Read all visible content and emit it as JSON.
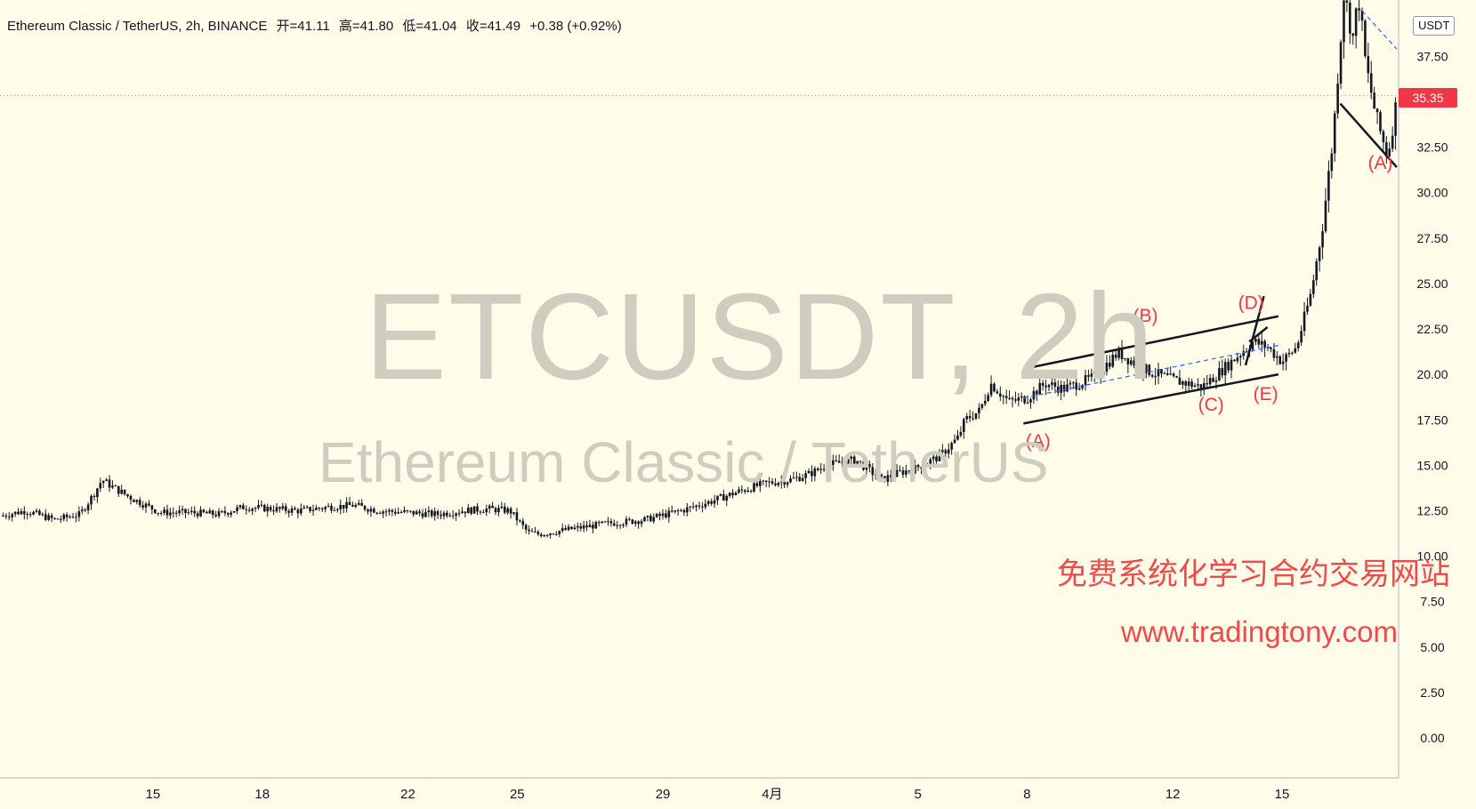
{
  "header": {
    "symbol": "Ethereum Classic / TetherUS, 2h, BINANCE",
    "open": "开=41.11",
    "high": "高=41.80",
    "low": "低=41.04",
    "close": "收=41.49",
    "change": "+0.38 (+0.92%)"
  },
  "watermark": {
    "symbol": "ETCUSDT, 2h",
    "name": "Ethereum Classic / TetherUS"
  },
  "promo": {
    "line1": "免费系统化学习合约交易网站",
    "line2": "www.tradingtony.com"
  },
  "price_scale": {
    "unit": "USDT",
    "last_price": "35.35",
    "last_price_value": 35.35
  },
  "colors": {
    "background": "#fffde9",
    "candle": "#131722",
    "wave_label": "#f23645",
    "midline": "#2962ff",
    "last_price": "#f23645"
  },
  "chart_data": {
    "type": "line",
    "title": "",
    "xlabel": "",
    "ylabel": "",
    "x_ticks": [
      {
        "label": "15",
        "day": 15
      },
      {
        "label": "18",
        "day": 18
      },
      {
        "label": "22",
        "day": 22
      },
      {
        "label": "25",
        "day": 25
      },
      {
        "label": "29",
        "day": 29
      },
      {
        "label": "4月",
        "day": 32
      },
      {
        "label": "5",
        "day": 36
      },
      {
        "label": "8",
        "day": 39
      },
      {
        "label": "12",
        "day": 43
      },
      {
        "label": "15",
        "day": 46
      }
    ],
    "y_ticks": [
      "0.00",
      "2.50",
      "5.00",
      "7.50",
      "10.00",
      "12.50",
      "15.00",
      "17.50",
      "20.00",
      "22.50",
      "25.00",
      "27.50",
      "30.00",
      "32.50",
      "37.50"
    ],
    "y_tick_values": [
      0,
      2.5,
      5,
      7.5,
      10,
      12.5,
      15,
      17.5,
      20,
      22.5,
      25,
      27.5,
      30,
      32.5,
      37.5
    ],
    "ylim": [
      -2.2,
      40.6
    ],
    "xlim": [
      10.8,
      49.2
    ],
    "grid": false,
    "series": [
      {
        "x": [
          10.8,
          11.5,
          12.3,
          13.0,
          13.4,
          13.6,
          13.9,
          14.4,
          15.2,
          16.0,
          16.8,
          17.5,
          18.3,
          19.0,
          19.8,
          20.5,
          21.2,
          22.0,
          22.8,
          23.5,
          24.2,
          24.8,
          25.3,
          25.6,
          26.5,
          27.5,
          28.5,
          29.5,
          30.3,
          31.0,
          31.8,
          32.5,
          33.0,
          33.5,
          34.3,
          35.0,
          35.5,
          35.9,
          36.6,
          37.1,
          37.3,
          37.7,
          38.0,
          38.5,
          39.0,
          39.5,
          40.0,
          40.8,
          41.5,
          42.3,
          43.0,
          43.8,
          44.5,
          45.2,
          45.6,
          46.0,
          46.4,
          46.8,
          47.1,
          47.4,
          47.7,
          47.95,
          48.1,
          48.3,
          48.6,
          48.9,
          49.1,
          49.2
        ],
        "y": [
          12.2,
          12.5,
          12.0,
          12.3,
          13.5,
          14.2,
          13.8,
          13.2,
          12.4,
          12.4,
          12.3,
          12.7,
          12.6,
          12.5,
          12.7,
          12.8,
          12.5,
          12.4,
          12.3,
          12.5,
          12.6,
          12.5,
          11.3,
          11.2,
          11.5,
          11.8,
          12.0,
          12.5,
          13.0,
          13.5,
          14.0,
          14.2,
          14.5,
          15.0,
          15.3,
          14.2,
          14.6,
          14.8,
          15.5,
          16.5,
          17.5,
          18.0,
          19.5,
          18.5,
          18.7,
          19.5,
          19.2,
          19.8,
          21.2,
          20.2,
          19.7,
          19.3,
          20.5,
          21.8,
          21.5,
          20.7,
          21.5,
          24.5,
          28.0,
          33.0,
          41.0,
          38.5,
          40.8,
          37.0,
          34.0,
          32.0,
          34.5,
          35.4
        ]
      }
    ],
    "channel": {
      "upper": [
        [
          38.9,
          20.3
        ],
        [
          45.9,
          23.2
        ]
      ],
      "lower": [
        [
          38.9,
          17.3
        ],
        [
          45.9,
          20.0
        ]
      ],
      "midline": [
        [
          38.9,
          18.7
        ],
        [
          45.9,
          21.6
        ]
      ]
    },
    "terminal_wedge": [
      [
        [
          45.0,
          20.5
        ],
        [
          45.5,
          24.3
        ]
      ],
      [
        [
          45.1,
          21.8
        ],
        [
          45.6,
          22.6
        ]
      ]
    ],
    "descending_line": [
      [
        47.6,
        34.9
      ],
      [
        49.15,
        31.4
      ]
    ],
    "descending_dash": [
      [
        48.2,
        40.0
      ],
      [
        49.15,
        37.9
      ]
    ],
    "wave_labels": [
      {
        "label": "(A)",
        "x": 39.3,
        "y": 16.0
      },
      {
        "label": "(B)",
        "x": 42.25,
        "y": 22.9
      },
      {
        "label": "(C)",
        "x": 44.05,
        "y": 18.0
      },
      {
        "label": "(D)",
        "x": 45.15,
        "y": 23.6
      },
      {
        "label": "(E)",
        "x": 45.55,
        "y": 18.6
      },
      {
        "label": "(A)",
        "x": 48.7,
        "y": 31.3
      }
    ]
  }
}
